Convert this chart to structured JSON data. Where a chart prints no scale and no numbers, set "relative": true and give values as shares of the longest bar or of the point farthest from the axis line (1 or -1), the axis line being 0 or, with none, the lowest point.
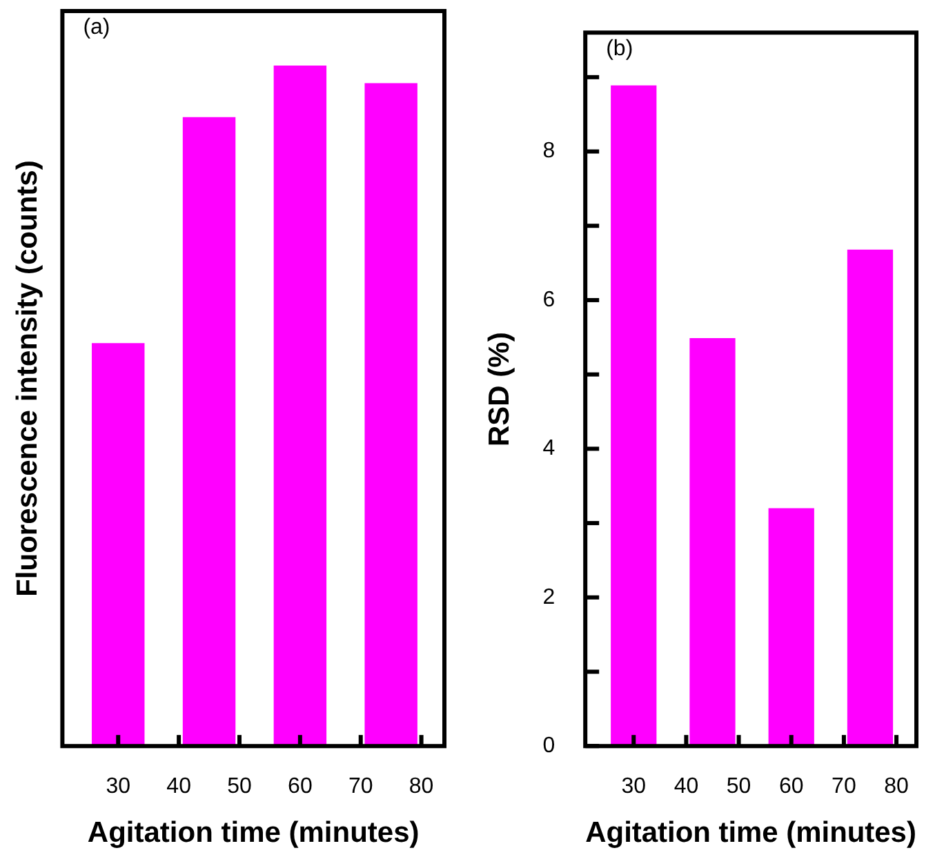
{
  "chart_data": [
    {
      "type": "bar",
      "relative": true,
      "xlabel": "Agitation time (minutes)",
      "ylabel": "Fluorescence intensity (counts)",
      "annotations": [
        "(a)"
      ],
      "x": [
        30,
        45,
        60,
        75
      ],
      "xlim": [
        20.8,
        83.8
      ],
      "xticks": [
        30,
        40,
        50,
        60,
        70,
        80
      ],
      "series": [
        {
          "color": "#ff00ff",
          "values": [
            0.592,
            0.924,
            1,
            0.974
          ]
        }
      ],
      "legend": false
    },
    {
      "type": "bar",
      "xlabel": "Agitation time (minutes)",
      "ylabel": "RSD (%)",
      "annotations": [
        "(b)"
      ],
      "x": [
        30,
        45,
        60,
        75
      ],
      "xlim": [
        20.8,
        83.8
      ],
      "xticks": [
        30,
        40,
        50,
        60,
        70,
        80
      ],
      "ylim": [
        0,
        9.6
      ],
      "yticks": [
        0,
        {
          "value": 1,
          "label": null
        },
        2,
        {
          "value": 3,
          "label": null
        },
        4,
        {
          "value": 5,
          "label": null
        },
        6,
        {
          "value": 7,
          "label": null
        },
        8,
        {
          "value": 9,
          "label": null
        }
      ],
      "series": [
        {
          "color": "#ff00ff",
          "values": [
            8.89,
            5.49,
            3.2,
            6.68
          ]
        }
      ],
      "legend": false
    }
  ]
}
